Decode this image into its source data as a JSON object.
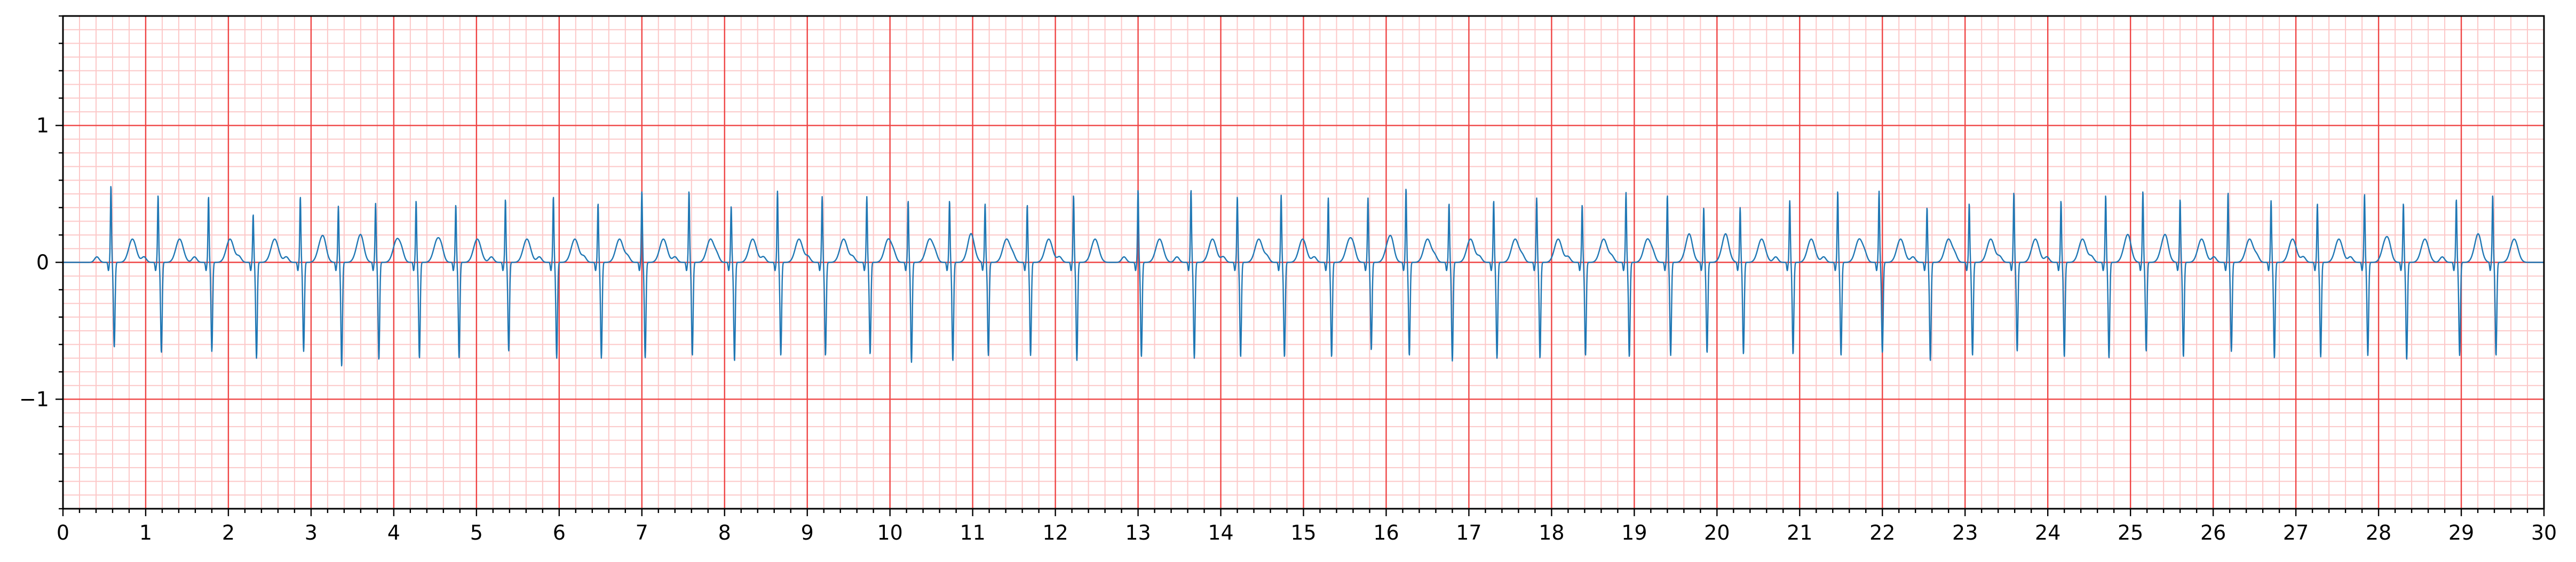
{
  "chart_data": {
    "type": "line",
    "title": "",
    "xlabel": "",
    "ylabel": "",
    "xlim": [
      0,
      30
    ],
    "ylim": [
      -1.8,
      1.8
    ],
    "x_ticks": [
      "0",
      "1",
      "2",
      "3",
      "4",
      "5",
      "6",
      "7",
      "8",
      "9",
      "10",
      "11",
      "12",
      "13",
      "14",
      "15",
      "16",
      "17",
      "18",
      "19",
      "20",
      "21",
      "22",
      "23",
      "24",
      "25",
      "26",
      "27",
      "28",
      "29",
      "30"
    ],
    "y_ticks": [
      {
        "value": 1,
        "label": "1"
      },
      {
        "value": 0,
        "label": "0"
      },
      {
        "value": -1,
        "label": "−1"
      }
    ],
    "grid": {
      "major_x": 1,
      "minor_x": 0.2,
      "major_y": 1,
      "minor_y": 0.1,
      "major_color": "#ef4444",
      "minor_color": "#fcc8c8"
    },
    "line_color": "#1f77b4",
    "beats": {
      "times": [
        0.58,
        1.15,
        1.76,
        2.3,
        2.87,
        3.33,
        3.78,
        4.27,
        4.75,
        5.35,
        5.93,
        6.47,
        7.0,
        7.57,
        8.08,
        8.64,
        9.18,
        9.72,
        10.22,
        10.72,
        11.15,
        11.66,
        12.22,
        13.0,
        13.64,
        14.2,
        14.73,
        15.3,
        15.78,
        16.24,
        16.76,
        17.3,
        17.82,
        18.37,
        18.9,
        19.4,
        19.84,
        20.28,
        20.88,
        21.46,
        21.96,
        22.54,
        23.05,
        23.59,
        24.16,
        24.7,
        25.15,
        25.6,
        26.18,
        26.7,
        27.26,
        27.83,
        28.3,
        28.94,
        29.38
      ],
      "r_amplitudes": [
        0.56,
        0.49,
        0.48,
        0.35,
        0.48,
        0.41,
        0.43,
        0.45,
        0.42,
        0.46,
        0.48,
        0.43,
        0.52,
        0.52,
        0.41,
        0.52,
        0.48,
        0.48,
        0.45,
        0.45,
        0.43,
        0.42,
        0.49,
        0.53,
        0.53,
        0.48,
        0.49,
        0.47,
        0.47,
        0.54,
        0.43,
        0.45,
        0.47,
        0.42,
        0.51,
        0.49,
        0.4,
        0.4,
        0.45,
        0.52,
        0.52,
        0.4,
        0.43,
        0.51,
        0.45,
        0.49,
        0.52,
        0.46,
        0.51,
        0.45,
        0.43,
        0.5,
        0.43,
        0.46,
        0.49
      ],
      "s_amplitudes": [
        -0.62,
        -0.66,
        -0.65,
        -0.7,
        -0.65,
        -0.76,
        -0.71,
        -0.7,
        -0.7,
        -0.65,
        -0.7,
        -0.7,
        -0.7,
        -0.68,
        -0.72,
        -0.68,
        -0.68,
        -0.67,
        -0.73,
        -0.72,
        -0.68,
        -0.68,
        -0.72,
        -0.69,
        -0.7,
        -0.69,
        -0.69,
        -0.69,
        -0.64,
        -0.68,
        -0.72,
        -0.7,
        -0.7,
        -0.68,
        -0.69,
        -0.68,
        -0.66,
        -0.67,
        -0.67,
        -0.68,
        -0.66,
        -0.72,
        -0.68,
        -0.65,
        -0.69,
        -0.7,
        -0.65,
        -0.69,
        -0.65,
        -0.7,
        -0.69,
        -0.68,
        -0.71,
        -0.68,
        -0.68
      ]
    }
  }
}
